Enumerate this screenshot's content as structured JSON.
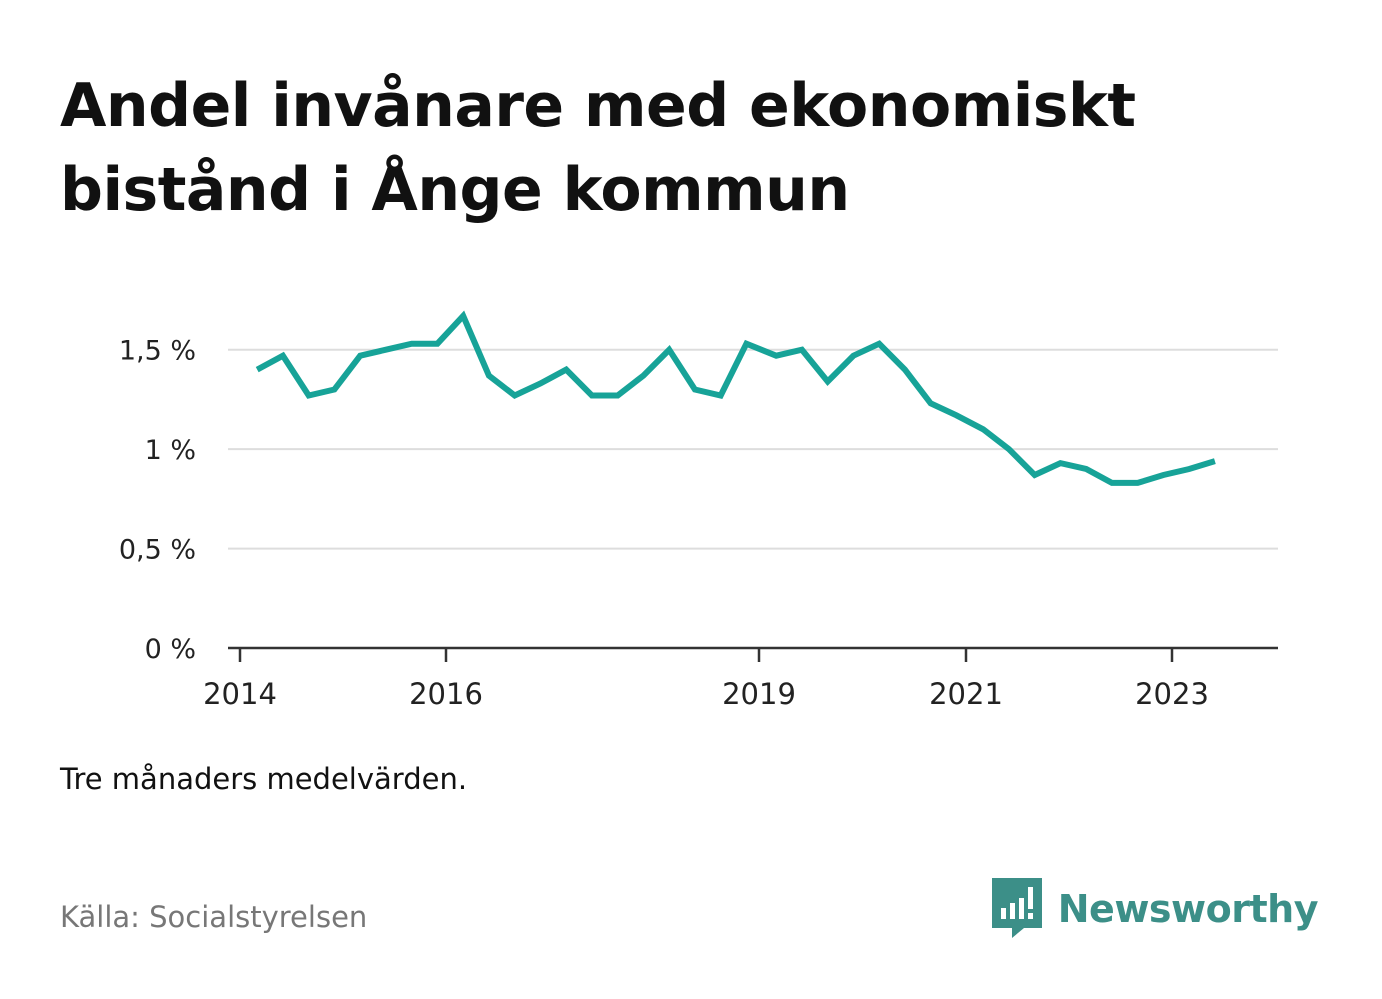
{
  "title": "Andel invånare med ekonomiskt bistånd i Ånge kommun",
  "note": "Tre månaders medelvärden.",
  "source": "Källa: Socialstyrelsen",
  "brand": {
    "name": "Newsworthy",
    "icon": "newsworthy-logo-icon",
    "color": "#3c8f88"
  },
  "colors": {
    "line": "#17a398",
    "grid": "#dddddd",
    "axis": "#333333"
  },
  "chart_data": {
    "type": "line",
    "title": "Andel invånare med ekonomiskt bistånd i Ånge kommun",
    "xlabel": "",
    "ylabel": "",
    "xlim": [
      2014,
      2024
    ],
    "ylim": [
      0,
      1.75
    ],
    "grid": true,
    "legend": "none",
    "y_ticks": [
      {
        "value": 0,
        "label": "0 %"
      },
      {
        "value": 0.5,
        "label": "0,5 %"
      },
      {
        "value": 1,
        "label": "1 %"
      },
      {
        "value": 1.5,
        "label": "1,5 %"
      }
    ],
    "x_ticks": [
      {
        "value": 2014,
        "label": "2014"
      },
      {
        "value": 2016,
        "label": "2016"
      },
      {
        "value": 2019,
        "label": "2019"
      },
      {
        "value": 2021,
        "label": "2021"
      },
      {
        "value": 2023,
        "label": "2023"
      }
    ],
    "series": [
      {
        "points": [
          {
            "x": "2014-03",
            "y": 1.4
          },
          {
            "x": "2014-06",
            "y": 1.47
          },
          {
            "x": "2014-09",
            "y": 1.27
          },
          {
            "x": "2014-12",
            "y": 1.3
          },
          {
            "x": "2015-03",
            "y": 1.47
          },
          {
            "x": "2015-06",
            "y": 1.5
          },
          {
            "x": "2015-09",
            "y": 1.53
          },
          {
            "x": "2015-12",
            "y": 1.53
          },
          {
            "x": "2016-03",
            "y": 1.67
          },
          {
            "x": "2016-06",
            "y": 1.37
          },
          {
            "x": "2016-09",
            "y": 1.27
          },
          {
            "x": "2016-12",
            "y": 1.33
          },
          {
            "x": "2017-03",
            "y": 1.4
          },
          {
            "x": "2017-06",
            "y": 1.27
          },
          {
            "x": "2017-09",
            "y": 1.27
          },
          {
            "x": "2017-12",
            "y": 1.37
          },
          {
            "x": "2018-03",
            "y": 1.5
          },
          {
            "x": "2018-06",
            "y": 1.3
          },
          {
            "x": "2018-09",
            "y": 1.27
          },
          {
            "x": "2018-12",
            "y": 1.53
          },
          {
            "x": "2019-03",
            "y": 1.47
          },
          {
            "x": "2019-06",
            "y": 1.5
          },
          {
            "x": "2019-09",
            "y": 1.34
          },
          {
            "x": "2019-12",
            "y": 1.47
          },
          {
            "x": "2020-03",
            "y": 1.53
          },
          {
            "x": "2020-06",
            "y": 1.4
          },
          {
            "x": "2020-09",
            "y": 1.23
          },
          {
            "x": "2020-12",
            "y": 1.17
          },
          {
            "x": "2021-03",
            "y": 1.1
          },
          {
            "x": "2021-06",
            "y": 1.0
          },
          {
            "x": "2021-09",
            "y": 0.87
          },
          {
            "x": "2021-12",
            "y": 0.93
          },
          {
            "x": "2022-03",
            "y": 0.9
          },
          {
            "x": "2022-06",
            "y": 0.83
          },
          {
            "x": "2022-09",
            "y": 0.83
          },
          {
            "x": "2022-12",
            "y": 0.87
          },
          {
            "x": "2023-03",
            "y": 0.9
          },
          {
            "x": "2023-06",
            "y": 0.94
          }
        ]
      }
    ]
  }
}
